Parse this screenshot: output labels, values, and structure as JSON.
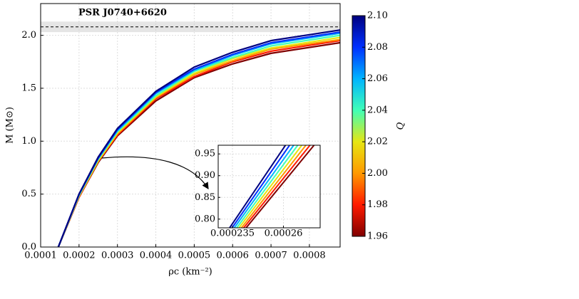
{
  "chart_data": {
    "type": "line",
    "xlabel": "ρc (km⁻²)",
    "ylabel": "M (M⊙)",
    "xlim": [
      0.0001,
      0.00088
    ],
    "ylim": [
      0,
      2.3
    ],
    "xticks": [
      0.0001,
      0.0002,
      0.0003,
      0.0004,
      0.0005,
      0.0006,
      0.0007,
      0.0008
    ],
    "yticks": [
      {
        "value": 0,
        "label": "0.0"
      },
      0.5,
      {
        "value": 1,
        "label": "1.0"
      },
      1.5,
      {
        "value": 2,
        "label": "2.0"
      }
    ],
    "grid": true,
    "reference": {
      "label": "PSR J0740+6620",
      "mass": 2.08,
      "band": [
        2.03,
        2.13
      ],
      "color": "#000000"
    },
    "x": [
      0.000146,
      0.0002,
      0.00025,
      0.0003,
      0.0004,
      0.0005,
      0.0006,
      0.0007,
      0.00088
    ],
    "series": [
      {
        "color": "#800000",
        "values": [
          0,
          0.47,
          0.8,
          1.05,
          1.38,
          1.6,
          1.73,
          1.83,
          1.93
        ]
      },
      {
        "color": "#ff1a00",
        "values": [
          0,
          0.47,
          0.81,
          1.06,
          1.4,
          1.61,
          1.75,
          1.85,
          1.95
        ]
      },
      {
        "color": "#ff9900",
        "values": [
          0,
          0.48,
          0.81,
          1.07,
          1.41,
          1.63,
          1.76,
          1.87,
          1.96
        ]
      },
      {
        "color": "#e6e612",
        "values": [
          0,
          0.48,
          0.82,
          1.08,
          1.42,
          1.64,
          1.78,
          1.88,
          1.98
        ]
      },
      {
        "color": "#40ffb7",
        "values": [
          0,
          0.49,
          0.83,
          1.09,
          1.43,
          1.66,
          1.79,
          1.9,
          2.0
        ]
      },
      {
        "color": "#00b4ff",
        "values": [
          0,
          0.49,
          0.84,
          1.1,
          1.45,
          1.67,
          1.81,
          1.92,
          2.02
        ]
      },
      {
        "color": "#0030ff",
        "values": [
          0,
          0.5,
          0.84,
          1.11,
          1.46,
          1.68,
          1.82,
          1.93,
          2.03
        ]
      },
      {
        "color": "#00007f",
        "values": [
          0,
          0.5,
          0.85,
          1.12,
          1.47,
          1.7,
          1.84,
          1.95,
          2.05
        ]
      }
    ],
    "colorbar": {
      "label": "Q",
      "lim": [
        1.96,
        2.1
      ],
      "ticks": [
        1.96,
        1.98,
        {
          "value": 2,
          "label": "2.00"
        },
        2.02,
        2.04,
        2.06,
        2.08,
        {
          "value": 2.1,
          "label": "2.10"
        }
      ],
      "colors": [
        "#800000",
        "#ff1a00",
        "#ff9900",
        "#e6e612",
        "#40ffb7",
        "#00b4ff",
        "#0030ff",
        "#00007f"
      ]
    },
    "inset": {
      "xlim": [
        0.000228,
        0.000278
      ],
      "ylim": [
        0.78,
        0.97
      ],
      "xticks": [
        0.000235,
        0.00026
      ],
      "yticks": [
        {
          "value": 0.8,
          "label": "0.80"
        },
        0.85,
        {
          "value": 0.9,
          "label": "0.90"
        },
        0.95
      ],
      "series": [
        {
          "color": "#800000",
          "x": [
            0.0002417,
            0.000275
          ],
          "values": [
            0.78,
            0.97
          ]
        },
        {
          "color": "#ff1a00",
          "x": [
            0.0002405,
            0.000273
          ],
          "values": [
            0.78,
            0.97
          ]
        },
        {
          "color": "#ff9900",
          "x": [
            0.0002394,
            0.000271
          ],
          "values": [
            0.78,
            0.97
          ]
        },
        {
          "color": "#e6e612",
          "x": [
            0.0002382,
            0.000269
          ],
          "values": [
            0.78,
            0.97
          ]
        },
        {
          "color": "#40ffb7",
          "x": [
            0.0002371,
            0.000267
          ],
          "values": [
            0.78,
            0.97
          ]
        },
        {
          "color": "#00b4ff",
          "x": [
            0.0002359,
            0.000265
          ],
          "values": [
            0.78,
            0.97
          ]
        },
        {
          "color": "#0030ff",
          "x": [
            0.0002348,
            0.000263
          ],
          "values": [
            0.78,
            0.97
          ]
        },
        {
          "color": "#00007f",
          "x": [
            0.0002336,
            0.000261
          ],
          "values": [
            0.78,
            0.97
          ]
        }
      ]
    }
  }
}
